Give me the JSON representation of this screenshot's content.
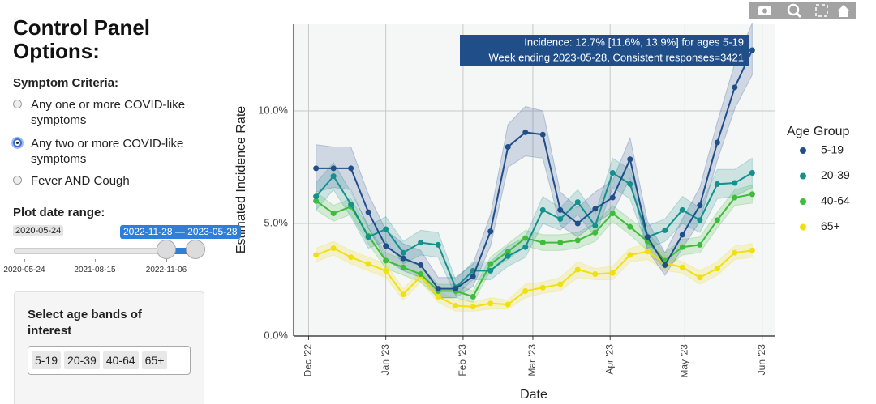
{
  "control_panel": {
    "title": "Control Panel Options:",
    "symptom_label": "Symptom Criteria:",
    "symptom_options": [
      "Any one or more COVID-like symptoms",
      "Any two or more COVID-like symptoms",
      "Fever AND Cough"
    ],
    "selected": 1,
    "date_range_label": "Plot date range:",
    "slider_min": "2020-05-24",
    "slider_range": "2022-11-28 — 2023-05-28",
    "slider_ticks": [
      "2020-05-24",
      "2021-08-15",
      "2022-11-06"
    ],
    "age_box_title": "Select age bands of interest",
    "age_bands": [
      "5-19",
      "20-39",
      "40-64",
      "65+"
    ]
  },
  "chart_data": {
    "type": "line",
    "x_label": "Date",
    "y_label": "Estimated Incidence Rate",
    "legend_title": "Age Group",
    "tooltip": [
      "Incidence: 12.7% [11.6%, 13.9%] for ages 5-19",
      "Week ending 2023-05-28, Consistent responses=3421"
    ],
    "x": [
      "2022-12-04",
      "2022-12-11",
      "2022-12-18",
      "2022-12-25",
      "2023-01-01",
      "2023-01-08",
      "2023-01-15",
      "2023-01-22",
      "2023-01-29",
      "2023-02-05",
      "2023-02-12",
      "2023-02-19",
      "2023-02-26",
      "2023-03-05",
      "2023-03-12",
      "2023-03-19",
      "2023-03-26",
      "2023-04-02",
      "2023-04-09",
      "2023-04-16",
      "2023-04-23",
      "2023-04-30",
      "2023-05-07",
      "2023-05-14",
      "2023-05-21",
      "2023-05-28"
    ],
    "xlim": [
      "2022-11-25",
      "2023-06-06"
    ],
    "xticks": [
      {
        "value": "2022-12-01",
        "label": "Dec '22"
      },
      {
        "value": "2023-01-01",
        "label": "Jan '23"
      },
      {
        "value": "2023-02-01",
        "label": "Feb '23"
      },
      {
        "value": "2023-03-01",
        "label": "Mar '23"
      },
      {
        "value": "2023-04-01",
        "label": "Apr '23"
      },
      {
        "value": "2023-05-01",
        "label": "May '23"
      },
      {
        "value": "2023-06-01",
        "label": "Jun '23"
      }
    ],
    "ylim": [
      0,
      13.85
    ],
    "yticks": [
      {
        "value": 0,
        "label": "0.0%"
      },
      {
        "value": 5,
        "label": "5.0%"
      },
      {
        "value": 10,
        "label": "10.0%"
      }
    ],
    "grid": true,
    "series": [
      {
        "name": "5-19",
        "color": "#1f4e89",
        "values": [
          7.45,
          7.45,
          7.45,
          5.5,
          4.0,
          3.45,
          3.15,
          2.1,
          2.1,
          2.65,
          4.65,
          8.4,
          9.05,
          8.95,
          5.6,
          5.0,
          5.65,
          6.15,
          7.85,
          4.4,
          3.15,
          4.5,
          5.8,
          8.6,
          11.05,
          12.7
        ],
        "lower": [
          6.4,
          6.6,
          6.5,
          4.8,
          3.4,
          2.9,
          2.6,
          1.7,
          1.7,
          2.2,
          4.0,
          7.5,
          8.0,
          7.9,
          4.9,
          4.4,
          5.0,
          5.5,
          7.0,
          3.8,
          2.7,
          3.9,
          5.1,
          7.8,
          10.1,
          11.6
        ],
        "upper": [
          8.5,
          8.4,
          8.4,
          6.3,
          4.7,
          4.1,
          3.8,
          2.6,
          2.6,
          3.2,
          5.4,
          9.4,
          10.2,
          10.0,
          6.4,
          5.7,
          6.4,
          6.9,
          8.8,
          5.1,
          3.7,
          5.2,
          6.6,
          9.5,
          12.1,
          13.9
        ]
      },
      {
        "name": "20-39",
        "color": "#15908c",
        "values": [
          6.2,
          7.1,
          5.85,
          4.4,
          4.75,
          3.7,
          4.15,
          4.05,
          2.15,
          2.9,
          2.9,
          3.55,
          3.95,
          5.6,
          5.2,
          5.95,
          4.9,
          7.25,
          6.75,
          4.4,
          4.7,
          5.6,
          5.15,
          6.75,
          6.8,
          7.25
        ],
        "lower": [
          5.6,
          6.5,
          5.3,
          3.9,
          4.2,
          3.2,
          3.6,
          3.5,
          1.8,
          2.5,
          2.5,
          3.1,
          3.5,
          5.0,
          4.7,
          5.4,
          4.4,
          6.6,
          6.1,
          3.9,
          4.2,
          5.0,
          4.6,
          6.1,
          6.2,
          6.6
        ],
        "upper": [
          6.8,
          7.7,
          6.4,
          4.9,
          5.3,
          4.2,
          4.7,
          4.6,
          2.5,
          3.3,
          3.3,
          4.0,
          4.4,
          6.2,
          5.7,
          6.5,
          5.4,
          7.9,
          7.4,
          4.9,
          5.2,
          6.2,
          5.7,
          7.4,
          7.4,
          7.9
        ]
      },
      {
        "name": "40-64",
        "color": "#3fbc3c",
        "values": [
          6.0,
          5.45,
          5.75,
          4.45,
          3.35,
          3.05,
          2.75,
          2.0,
          2.0,
          1.75,
          3.2,
          3.75,
          4.35,
          4.15,
          4.15,
          4.25,
          4.6,
          5.45,
          4.85,
          4.2,
          3.35,
          3.95,
          4.05,
          5.15,
          6.15,
          6.3
        ],
        "lower": [
          5.6,
          5.1,
          5.4,
          4.1,
          3.0,
          2.7,
          2.4,
          1.7,
          1.7,
          1.5,
          2.9,
          3.4,
          4.0,
          3.8,
          3.8,
          3.9,
          4.2,
          5.1,
          4.5,
          3.8,
          3.0,
          3.6,
          3.7,
          4.8,
          5.8,
          5.9
        ],
        "upper": [
          6.4,
          5.8,
          6.1,
          4.8,
          3.7,
          3.4,
          3.1,
          2.3,
          2.3,
          2.0,
          3.5,
          4.1,
          4.7,
          4.5,
          4.5,
          4.6,
          5.0,
          5.8,
          5.2,
          4.6,
          3.7,
          4.3,
          4.4,
          5.5,
          6.5,
          6.7
        ]
      },
      {
        "name": "65+",
        "color": "#f0e010",
        "values": [
          3.6,
          3.9,
          3.5,
          3.2,
          2.9,
          1.85,
          2.65,
          1.75,
          1.35,
          1.3,
          1.45,
          1.4,
          2.0,
          2.15,
          2.3,
          2.95,
          2.75,
          2.8,
          3.6,
          3.75,
          3.25,
          3.05,
          2.6,
          3.0,
          3.7,
          3.8
        ],
        "lower": [
          3.3,
          3.6,
          3.2,
          2.9,
          2.6,
          1.6,
          2.4,
          1.5,
          1.1,
          1.1,
          1.2,
          1.2,
          1.7,
          1.9,
          2.0,
          2.6,
          2.5,
          2.5,
          3.3,
          3.4,
          2.9,
          2.8,
          2.3,
          2.7,
          3.4,
          3.5
        ],
        "upper": [
          3.9,
          4.2,
          3.8,
          3.5,
          3.2,
          2.1,
          2.9,
          2.0,
          1.6,
          1.5,
          1.7,
          1.6,
          2.3,
          2.4,
          2.6,
          3.3,
          3.0,
          3.1,
          3.9,
          4.1,
          3.6,
          3.3,
          2.9,
          3.3,
          4.0,
          4.1
        ]
      }
    ]
  }
}
